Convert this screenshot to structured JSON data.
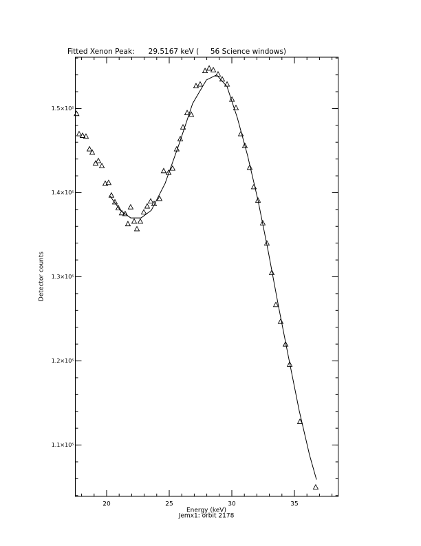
{
  "chart_data": {
    "type": "scatter",
    "title": "Fitted Xenon Peak:      29.5167 keV (     56 Science windows)",
    "x_label": "Energy (keV)",
    "x_sublabel": "Jemx1: orbit 2178",
    "y_label": "Detector counts",
    "xlim": [
      17.5,
      38.5
    ],
    "ylim": [
      103900,
      156100
    ],
    "xticks": [
      20,
      25,
      30,
      35
    ],
    "yticks": [
      {
        "value": 110000,
        "label": "1.1×10⁵"
      },
      {
        "value": 120000,
        "label": "1.2×10⁵"
      },
      {
        "value": 130000,
        "label": "1.3×10⁵"
      },
      {
        "value": 140000,
        "label": "1.4×10⁵"
      },
      {
        "value": 150000,
        "label": "1.5×10⁵"
      }
    ],
    "xminor": 1,
    "yminor": 2000,
    "color": "#000000",
    "series": [
      {
        "marker": "triangle",
        "x": [
          17.6,
          17.8,
          18.08,
          18.35,
          18.63,
          18.85,
          19.12,
          19.34,
          19.62,
          19.89,
          20.16,
          20.38,
          20.66,
          20.93,
          21.21,
          21.48,
          21.7,
          21.92,
          22.2,
          22.42,
          22.69,
          22.97,
          23.24,
          23.52,
          23.79,
          24.23,
          24.56,
          24.95,
          25.27,
          25.6,
          25.88,
          26.1,
          26.43,
          26.76,
          27.14,
          27.47,
          27.86,
          28.19,
          28.52,
          28.9,
          29.23,
          29.62,
          30.01,
          30.33,
          30.72,
          31.04,
          31.43,
          31.76,
          32.09,
          32.47,
          32.8,
          33.19,
          33.52,
          33.9,
          34.29,
          34.62,
          35.44,
          36.7
        ],
        "values": [
          149400,
          147000,
          146800,
          146700,
          145200,
          144800,
          143500,
          143800,
          143200,
          141100,
          141200,
          139700,
          138900,
          138200,
          137600,
          137500,
          136300,
          138300,
          136600,
          135700,
          136600,
          137700,
          138400,
          139000,
          138700,
          139300,
          142600,
          142400,
          142900,
          145200,
          146400,
          147800,
          149500,
          149300,
          152700,
          152900,
          154500,
          154800,
          154600,
          154100,
          153500,
          152900,
          151100,
          150100,
          147000,
          145600,
          143000,
          140700,
          139100,
          136400,
          134000,
          130500,
          126700,
          124700,
          122000,
          119600,
          112800,
          105000
        ]
      },
      {
        "marker": "line",
        "x": [
          20.27,
          21.1,
          21.92,
          22.75,
          23.57,
          24.67,
          25.77,
          26.87,
          27.97,
          28.79,
          29.62,
          30.44,
          31.26,
          32.09,
          32.91,
          33.74,
          34.56,
          35.38,
          36.21,
          36.76
        ],
        "values": [
          139600,
          137900,
          137000,
          137000,
          137900,
          141100,
          145700,
          150600,
          153400,
          154000,
          152600,
          148900,
          144400,
          139100,
          133000,
          126400,
          120200,
          114100,
          108800,
          105900
        ]
      }
    ]
  }
}
